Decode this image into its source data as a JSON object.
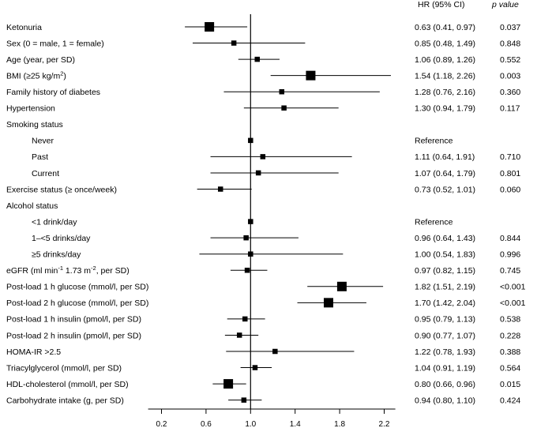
{
  "chart_data": {
    "type": "forest",
    "title": "",
    "xlabel": "",
    "ylabel": "",
    "columns": {
      "hr": "HR (95% CI)",
      "p": "p value"
    },
    "x_ticks": [
      0.2,
      0.6,
      1.0,
      1.4,
      1.8,
      2.2
    ],
    "x_tick_labels": [
      "0.2",
      "0.6",
      "1.0",
      "1.4",
      "1.8",
      "2.2"
    ],
    "xlim": [
      0.08,
      2.3
    ],
    "reference_line": 1.0,
    "rows": [
      {
        "label": "Ketonuria",
        "indent": 0,
        "hr": 0.63,
        "lo": 0.41,
        "hi": 0.97,
        "ci_text": "0.63 (0.41, 0.97)",
        "p": "0.037",
        "weight": 3
      },
      {
        "label": "Sex (0 = male, 1 = female)",
        "indent": 0,
        "hr": 0.85,
        "lo": 0.48,
        "hi": 1.49,
        "ci_text": "0.85 (0.48, 1.49)",
        "p": "0.848",
        "weight": 1
      },
      {
        "label": "Age (year, per SD)",
        "indent": 0,
        "hr": 1.06,
        "lo": 0.89,
        "hi": 1.26,
        "ci_text": "1.06 (0.89, 1.26)",
        "p": "0.552",
        "weight": 1
      },
      {
        "label": "BMI (≥25 kg/m²)",
        "indent": 0,
        "hr": 1.54,
        "lo": 1.18,
        "hi": 2.26,
        "ci_text": "1.54 (1.18, 2.26)",
        "p": "0.003",
        "weight": 3
      },
      {
        "label": "Family history of diabetes",
        "indent": 0,
        "hr": 1.28,
        "lo": 0.76,
        "hi": 2.16,
        "ci_text": "1.28  (0.76, 2.16)",
        "p": "0.360",
        "weight": 1
      },
      {
        "label": "Hypertension",
        "indent": 0,
        "hr": 1.3,
        "lo": 0.94,
        "hi": 1.79,
        "ci_text": "1.30 (0.94, 1.79)",
        "p": "0.117",
        "weight": 1
      },
      {
        "label": "Smoking status",
        "indent": 0,
        "ci_text": "",
        "p": ""
      },
      {
        "label": "Never",
        "indent": 1,
        "hr": 1.0,
        "ci_text": "Reference",
        "p": "",
        "weight": 1
      },
      {
        "label": "Past",
        "indent": 1,
        "hr": 1.11,
        "lo": 0.64,
        "hi": 1.91,
        "ci_text": "1.11 (0.64, 1.91)",
        "p": "0.710",
        "weight": 1
      },
      {
        "label": "Current",
        "indent": 1,
        "hr": 1.07,
        "lo": 0.64,
        "hi": 1.79,
        "ci_text": "1.07 (0.64, 1.79)",
        "p": "0.801",
        "weight": 1
      },
      {
        "label": "Exercise status (≥ once/week)",
        "indent": 0,
        "hr": 0.73,
        "lo": 0.52,
        "hi": 1.01,
        "ci_text": "0.73 (0.52, 1.01)",
        "p": "0.060",
        "weight": 1
      },
      {
        "label": "Alcohol status",
        "indent": 0,
        "ci_text": "",
        "p": ""
      },
      {
        "label": "<1 drink/day",
        "indent": 1,
        "hr": 1.0,
        "ci_text": "Reference",
        "p": "",
        "weight": 1
      },
      {
        "label": "1–<5 drinks/day",
        "indent": 1,
        "hr": 0.96,
        "lo": 0.64,
        "hi": 1.43,
        "ci_text": "0.96 (0.64, 1.43)",
        "p": "0.844",
        "weight": 1
      },
      {
        "label": "≥5 drinks/day",
        "indent": 1,
        "hr": 1.0,
        "lo": 0.54,
        "hi": 1.83,
        "ci_text": "1.00 (0.54, 1.83)",
        "p": "0.996",
        "weight": 1
      },
      {
        "label": "eGFR (ml min⁻¹ 1.73 m⁻², per SD)",
        "indent": 0,
        "hr": 0.97,
        "lo": 0.82,
        "hi": 1.15,
        "ci_text": "0.97 (0.82, 1.15)",
        "p": "0.745",
        "weight": 1
      },
      {
        "label": "Post-load 1 h glucose (mmol/l, per SD)",
        "indent": 0,
        "hr": 1.82,
        "lo": 1.51,
        "hi": 2.19,
        "ci_text": "1.82 (1.51, 2.19)",
        "p": "<0.001",
        "weight": 3
      },
      {
        "label": "Post-load 2 h glucose (mmol/l, per SD)",
        "indent": 0,
        "hr": 1.7,
        "lo": 1.42,
        "hi": 2.04,
        "ci_text": "1.70 (1.42, 2.04)",
        "p": "<0.001",
        "weight": 3
      },
      {
        "label": "Post-load 1 h insulin (pmol/l, per SD)",
        "indent": 0,
        "hr": 0.95,
        "lo": 0.79,
        "hi": 1.13,
        "ci_text": "0.95 (0.79, 1.13)",
        "p": "0.538",
        "weight": 1
      },
      {
        "label": "Post-load 2 h insulin (pmol/l, per SD)",
        "indent": 0,
        "hr": 0.9,
        "lo": 0.77,
        "hi": 1.07,
        "ci_text": "0.90 (0.77, 1.07)",
        "p": "0.228",
        "weight": 1
      },
      {
        "label": "HOMA-IR >2.5",
        "indent": 0,
        "hr": 1.22,
        "lo": 0.78,
        "hi": 1.93,
        "ci_text": "1.22 (0.78, 1.93)",
        "p": "0.388",
        "weight": 1
      },
      {
        "label": "Triacylglycerol (mmol/l, per SD)",
        "indent": 0,
        "hr": 1.04,
        "lo": 0.91,
        "hi": 1.19,
        "ci_text": "1.04 (0.91, 1.19)",
        "p": "0.564",
        "weight": 1
      },
      {
        "label": "HDL-cholesterol (mmol/l, per SD)",
        "indent": 0,
        "hr": 0.8,
        "lo": 0.66,
        "hi": 0.96,
        "ci_text": "0.80 (0.66, 0.96)",
        "p": "0.015",
        "weight": 3
      },
      {
        "label": "Carbohydrate intake (g, per SD)",
        "indent": 0,
        "hr": 0.94,
        "lo": 0.8,
        "hi": 1.1,
        "ci_text": "0.94 (0.80, 1.10)",
        "p": "0.424",
        "weight": 1
      }
    ]
  }
}
